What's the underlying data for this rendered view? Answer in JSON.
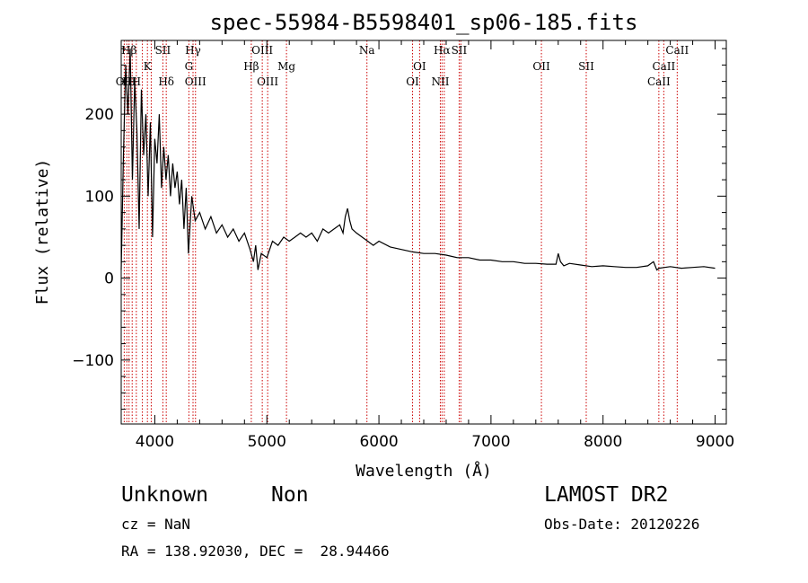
{
  "chart_data": {
    "type": "line",
    "title": "spec-55984-B5598401_sp06-185.fits",
    "xlabel": "Wavelength (Å)",
    "ylabel": "Flux (relative)",
    "xlim": [
      3700,
      9100
    ],
    "ylim": [
      -178,
      290
    ],
    "x_ticks": [
      4000,
      5000,
      6000,
      7000,
      8000,
      9000
    ],
    "y_ticks": [
      -100,
      0,
      100,
      200
    ],
    "grid": false,
    "line_color": "#000000",
    "marker_color": "#cc0000",
    "series": [
      {
        "x": [
          3700,
          3720,
          3740,
          3760,
          3780,
          3800,
          3820,
          3840,
          3860,
          3880,
          3900,
          3920,
          3940,
          3960,
          3980,
          4000,
          4020,
          4040,
          4060,
          4080,
          4100,
          4120,
          4140,
          4160,
          4180,
          4200,
          4220,
          4240,
          4260,
          4280,
          4300,
          4330,
          4360,
          4400,
          4450,
          4500,
          4550,
          4600,
          4650,
          4700,
          4750,
          4800,
          4850,
          4880,
          4900,
          4920,
          4950,
          5000,
          5050,
          5100,
          5150,
          5200,
          5250,
          5300,
          5350,
          5400,
          5450,
          5500,
          5550,
          5600,
          5650,
          5680,
          5700,
          5720,
          5740,
          5760,
          5800,
          5850,
          5900,
          5950,
          6000,
          6100,
          6200,
          6300,
          6400,
          6500,
          6600,
          6700,
          6800,
          6900,
          7000,
          7100,
          7200,
          7300,
          7400,
          7500,
          7580,
          7600,
          7620,
          7650,
          7700,
          7800,
          7900,
          8000,
          8100,
          8200,
          8300,
          8400,
          8450,
          8480,
          8500,
          8550,
          8600,
          8700,
          8800,
          8900,
          9000
        ],
        "y": [
          10,
          150,
          260,
          200,
          280,
          120,
          240,
          180,
          60,
          230,
          150,
          200,
          100,
          190,
          50,
          170,
          140,
          200,
          110,
          160,
          120,
          150,
          100,
          140,
          110,
          130,
          90,
          120,
          60,
          110,
          30,
          100,
          70,
          80,
          60,
          75,
          55,
          65,
          50,
          60,
          45,
          55,
          35,
          20,
          40,
          10,
          30,
          25,
          45,
          40,
          50,
          45,
          50,
          55,
          50,
          55,
          45,
          60,
          55,
          60,
          65,
          55,
          75,
          85,
          70,
          60,
          55,
          50,
          45,
          40,
          45,
          38,
          35,
          32,
          30,
          30,
          28,
          25,
          25,
          22,
          22,
          20,
          20,
          18,
          18,
          17,
          17,
          30,
          20,
          15,
          18,
          16,
          14,
          15,
          14,
          13,
          13,
          15,
          20,
          10,
          12,
          13,
          14,
          12,
          13,
          14,
          12
        ]
      }
    ],
    "lines": [
      {
        "x": 3727,
        "label": "OII",
        "row": 3
      },
      {
        "x": 3750,
        "label": "H",
        "row": 3
      },
      {
        "x": 3770,
        "label": "Hβ",
        "row": 1
      },
      {
        "x": 3798,
        "label": "H",
        "row": 3
      },
      {
        "x": 3835,
        "label": "H",
        "row": 3
      },
      {
        "x": 3889,
        "label": "",
        "row": 3
      },
      {
        "x": 3934,
        "label": "K",
        "row": 2
      },
      {
        "x": 3968,
        "label": "",
        "row": 2
      },
      {
        "x": 4072,
        "label": "SII",
        "row": 1
      },
      {
        "x": 4102,
        "label": "Hδ",
        "row": 3
      },
      {
        "x": 4304,
        "label": "G",
        "row": 2
      },
      {
        "x": 4341,
        "label": "Hγ",
        "row": 1
      },
      {
        "x": 4363,
        "label": "OIII",
        "row": 3
      },
      {
        "x": 4861,
        "label": "Hβ",
        "row": 2
      },
      {
        "x": 4959,
        "label": "OIII",
        "row": 1
      },
      {
        "x": 5007,
        "label": "OIII",
        "row": 3
      },
      {
        "x": 5175,
        "label": "Mg",
        "row": 2
      },
      {
        "x": 5893,
        "label": "Na",
        "row": 1
      },
      {
        "x": 6300,
        "label": "OI",
        "row": 3
      },
      {
        "x": 6363,
        "label": "OI",
        "row": 2
      },
      {
        "x": 6548,
        "label": "NII",
        "row": 3
      },
      {
        "x": 6563,
        "label": "Hα",
        "row": 1
      },
      {
        "x": 6583,
        "label": "",
        "row": 3
      },
      {
        "x": 6716,
        "label": "SII",
        "row": 1
      },
      {
        "x": 6731,
        "label": "",
        "row": 1
      },
      {
        "x": 7450,
        "label": "OII",
        "row": 2
      },
      {
        "x": 7850,
        "label": "SII",
        "row": 2
      },
      {
        "x": 8498,
        "label": "CaII",
        "row": 3
      },
      {
        "x": 8542,
        "label": "CaII",
        "row": 2
      },
      {
        "x": 8662,
        "label": "CaII",
        "row": 1
      }
    ]
  },
  "info": {
    "object_class": "Unknown",
    "object_subclass": "Non",
    "survey": "LAMOST DR2",
    "redshift": "cz = NaN",
    "obs_date": "Obs-Date: 20120226",
    "coords": "RA = 138.92030, DEC =  28.94466"
  }
}
